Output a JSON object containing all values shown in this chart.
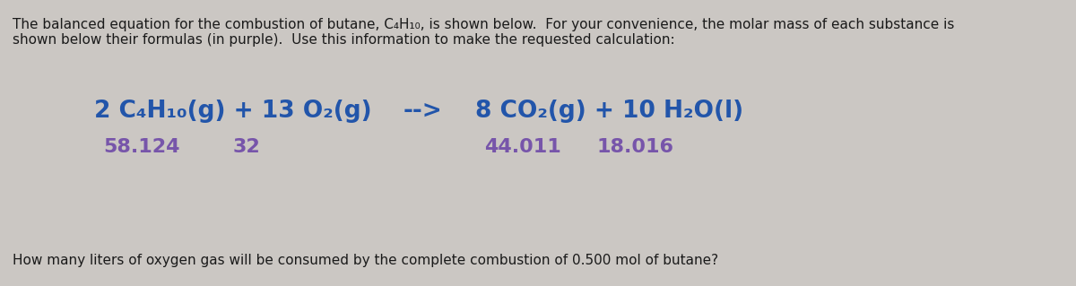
{
  "bg_color": "#cbc7c3",
  "text_color": "#1a1a1a",
  "blue_color": "#2255aa",
  "purple_color": "#7755aa",
  "figsize": [
    12.0,
    3.19
  ],
  "dpi": 100,
  "header_line1": "The balanced equation for the combustion of butane, C₄H₁₀, is shown below.  For your convenience, the molar mass of each substance is",
  "header_line2": "shown below their formulas (in purple).  Use this information to make the requested calculation:",
  "footer_text": "How many liters of oxygen gas will be consumed by the complete combustion of 0.500 mol of butane?",
  "eq_part1": "2 C₄H₁₀(g) + 13 O₂(g)",
  "eq_arrow": "-->",
  "eq_part2": "8 CO₂(g) + 10 H₂O(l)",
  "molar_masses": [
    "58.124",
    "32",
    "44.011",
    "18.016"
  ],
  "header_fontsize": 11.0,
  "footer_fontsize": 11.0,
  "equation_fontsize": 19.0,
  "molar_mass_fontsize": 16.0
}
